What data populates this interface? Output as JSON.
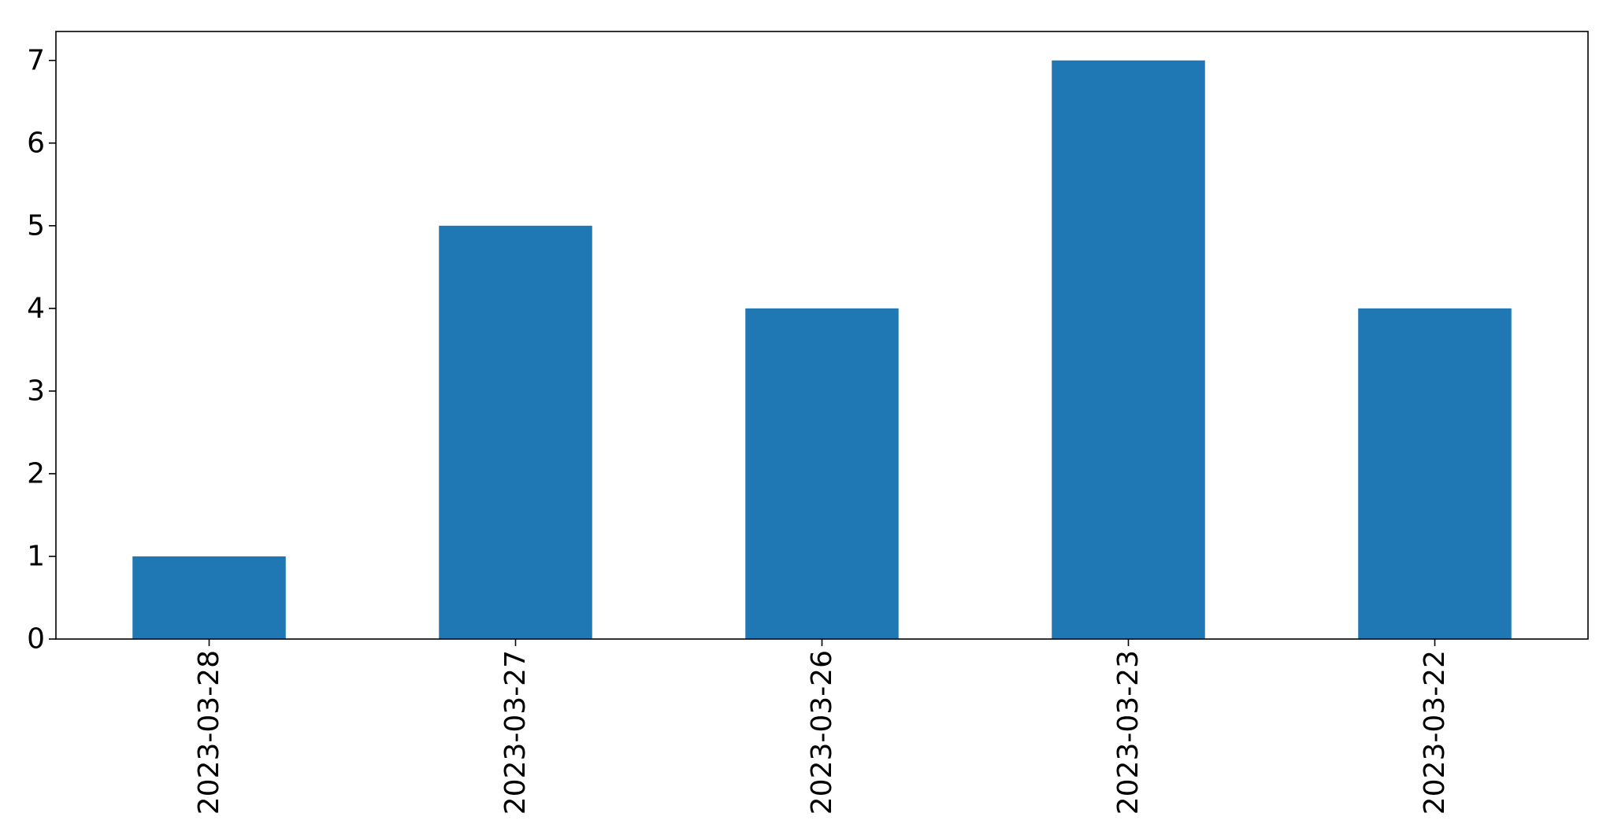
{
  "chart_data": {
    "type": "bar",
    "categories": [
      "2023-03-28",
      "2023-03-27",
      "2023-03-26",
      "2023-03-23",
      "2023-03-22"
    ],
    "values": [
      1,
      5,
      4,
      7,
      4
    ],
    "title": "",
    "xlabel": "",
    "ylabel": "",
    "ylim": [
      0,
      7.35
    ],
    "yticks": [
      0,
      1,
      2,
      3,
      4,
      5,
      6,
      7
    ],
    "x_tick_rotation": "vertical",
    "grid": false,
    "legend": "none",
    "colors": {
      "bar": "#1f77b4",
      "axes": "#000000",
      "background": "#ffffff"
    }
  }
}
